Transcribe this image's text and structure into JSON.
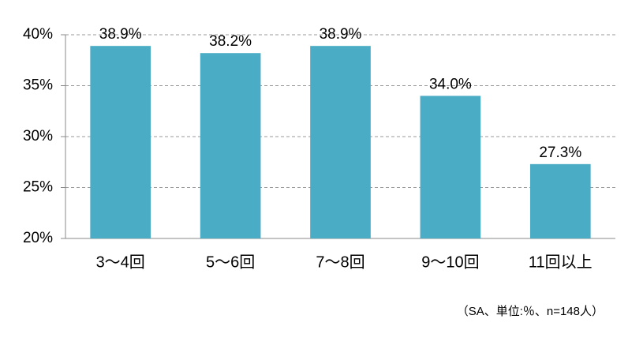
{
  "chart_data": {
    "type": "bar",
    "categories": [
      "3〜4回",
      "5〜6回",
      "7〜8回",
      "9〜10回",
      "11回以上"
    ],
    "values": [
      38.9,
      38.2,
      38.9,
      34.0,
      27.3
    ],
    "value_labels": [
      "38.9%",
      "38.2%",
      "38.9%",
      "34.0%",
      "27.3%"
    ],
    "color": "#4bacc6",
    "ylim": [
      20,
      40
    ],
    "yticks": [
      {
        "value": 20,
        "label": "20%"
      },
      {
        "value": 25,
        "label": "25%"
      },
      {
        "value": 30,
        "label": "30%"
      },
      {
        "value": 35,
        "label": "35%"
      },
      {
        "value": 40,
        "label": "40%"
      }
    ],
    "grid": true,
    "note": "（SA、単位:％、n=148人）"
  }
}
